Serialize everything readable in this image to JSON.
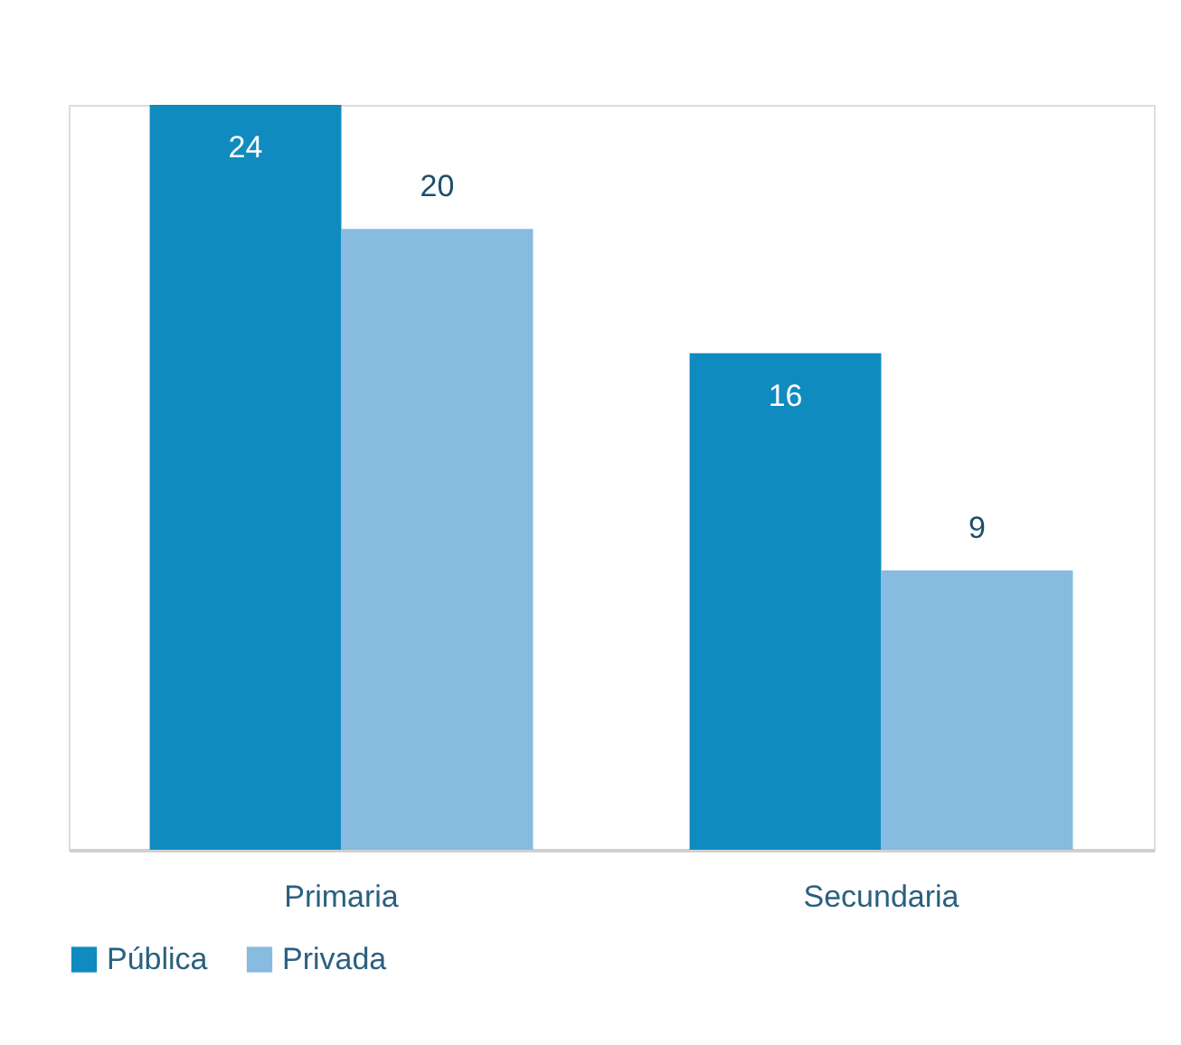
{
  "chart_data": {
    "type": "bar",
    "categories": [
      "Primaria",
      "Secundaria"
    ],
    "series": [
      {
        "name": "Pública",
        "color": "#0f8bbf",
        "values": [
          24,
          16
        ]
      },
      {
        "name": "Privada",
        "color": "#87bbe0",
        "values": [
          20,
          9
        ]
      }
    ],
    "data_labels": true,
    "legend": "bottom",
    "grid": false
  }
}
